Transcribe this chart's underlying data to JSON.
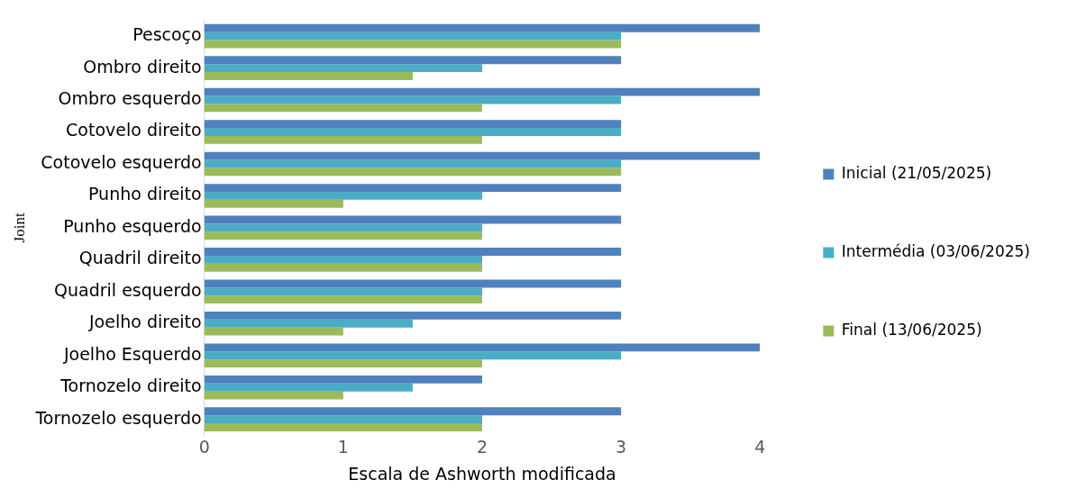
{
  "chart_data": {
    "type": "bar",
    "orientation": "horizontal",
    "xlabel": "Escala de Ashworth modificada",
    "ylabel": "Joint",
    "categories": [
      "Pescoço",
      "Ombro direito",
      "Ombro esquerdo",
      "Cotovelo direito",
      "Cotovelo esquerdo",
      "Punho direito",
      "Punho esquerdo",
      "Quadril direito",
      "Quadril esquerdo",
      "Joelho direito",
      "Joelho Esquerdo",
      "Tornozelo direito",
      "Tornozelo esquerdo"
    ],
    "series": [
      {
        "name": "Inicial (21/05/2025)",
        "color": "#4f81bd",
        "values": [
          4,
          3,
          4,
          3,
          4,
          3,
          3,
          3,
          3,
          3,
          4,
          2,
          3
        ]
      },
      {
        "name": "Intermédia (03/06/2025)",
        "color": "#4bacc6",
        "values": [
          3,
          2,
          3,
          3,
          3,
          2,
          2,
          2,
          2,
          1.5,
          3,
          1.5,
          2
        ]
      },
      {
        "name": "Final (13/06/2025)",
        "color": "#9bbb59",
        "values": [
          3,
          1.5,
          2,
          2,
          3,
          1,
          2,
          2,
          2,
          1,
          2,
          1,
          2
        ]
      }
    ],
    "xlim": [
      0,
      4
    ],
    "xticks": [
      0,
      1,
      2,
      3,
      4
    ],
    "grid": false,
    "legend": "right"
  }
}
